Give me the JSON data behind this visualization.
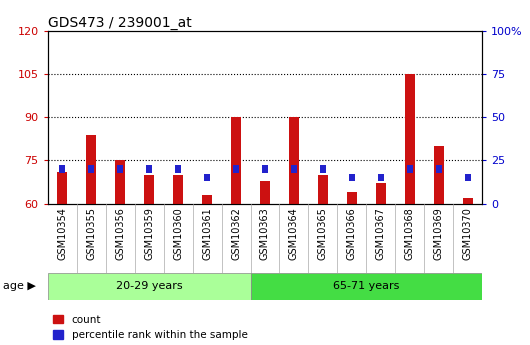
{
  "title": "GDS473 / 239001_at",
  "samples": [
    "GSM10354",
    "GSM10355",
    "GSM10356",
    "GSM10359",
    "GSM10360",
    "GSM10361",
    "GSM10362",
    "GSM10363",
    "GSM10364",
    "GSM10365",
    "GSM10366",
    "GSM10367",
    "GSM10368",
    "GSM10369",
    "GSM10370"
  ],
  "count_values": [
    71,
    84,
    75,
    70,
    70,
    63,
    90,
    68,
    90,
    70,
    64,
    67,
    105,
    80,
    62
  ],
  "percentile_values": [
    20,
    20,
    20,
    20,
    20,
    15,
    20,
    20,
    20,
    20,
    15,
    15,
    20,
    20,
    15
  ],
  "groups": [
    {
      "label": "20-29 years",
      "start": 0,
      "end": 7,
      "color": "#aaff99"
    },
    {
      "label": "65-71 years",
      "start": 7,
      "end": 15,
      "color": "#44dd44"
    }
  ],
  "age_label": "age",
  "ylim_left": [
    60,
    120
  ],
  "ylim_right": [
    0,
    100
  ],
  "yticks_left": [
    60,
    75,
    90,
    105,
    120
  ],
  "yticks_right": [
    0,
    25,
    50,
    75,
    100
  ],
  "ytick_labels_right": [
    "0",
    "25",
    "50",
    "75",
    "100%"
  ],
  "bar_color_red": "#cc1111",
  "bar_color_blue": "#2222cc",
  "title_fontsize": 10,
  "tick_label_fontsize": 7,
  "axis_label_color_left": "#cc0000",
  "axis_label_color_right": "#0000cc",
  "legend_red_label": "count",
  "legend_blue_label": "percentile rank within the sample",
  "bar_width": 0.35,
  "xticklabel_bg": "#dddddd",
  "group_border_color": "#888888"
}
